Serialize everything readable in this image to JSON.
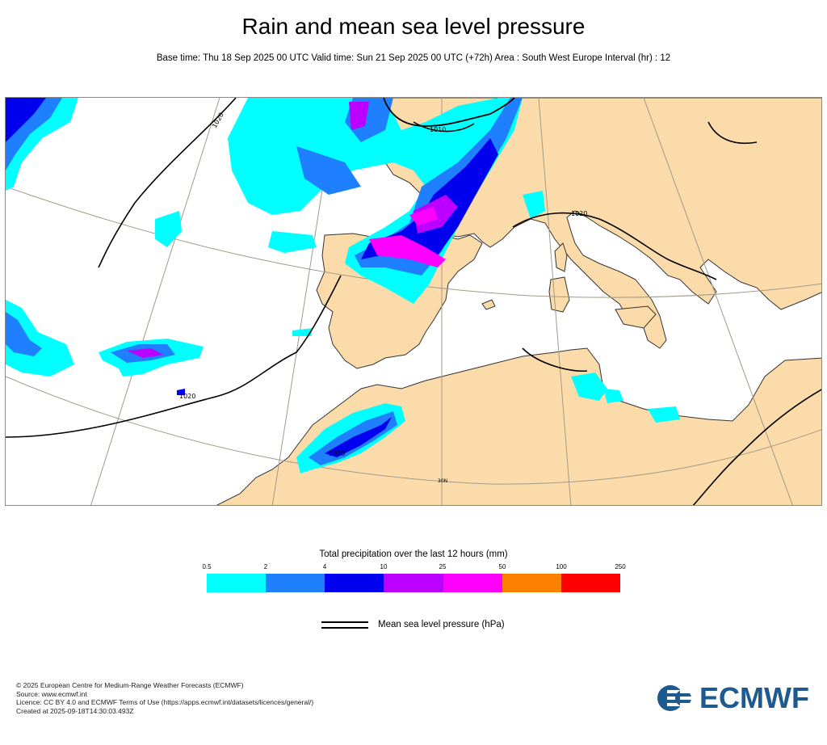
{
  "header": {
    "title": "Rain and mean sea level pressure",
    "subtitle": "Base time: Thu 18 Sep 2025 00 UTC Valid time: Sun 21 Sep 2025 00 UTC (+72h) Area : South West Europe Interval (hr) : 12"
  },
  "map": {
    "area": "South West Europe",
    "isobar_labels": [
      "1010",
      "1020",
      "1020",
      "1020",
      "1020"
    ],
    "latitude_label": "30N",
    "colors": {
      "land": "#fbdba9",
      "sea": "#ffffff",
      "coast": "#333333",
      "graticule": "#a09a8a",
      "isobar": "#000000"
    }
  },
  "legend": {
    "title": "Total precipitation over the last 12 hours (mm)",
    "ticks": [
      "0.5",
      "2",
      "4",
      "10",
      "25",
      "50",
      "100",
      "250"
    ],
    "colors": [
      "#00ffff",
      "#1e7fff",
      "#0000ee",
      "#bb00ff",
      "#ff00ff",
      "#ff8000",
      "#ff0000"
    ],
    "mslp_label": "Mean sea level pressure (hPa)"
  },
  "footer": {
    "line1": "© 2025 European Centre for Medium-Range Weather Forecasts (ECMWF)",
    "line2": "Source: www.ecmwf.int",
    "line3": "Licence: CC BY 4.0 and ECMWF Terms of Use (https://apps.ecmwf.int/datasets/licences/general/)",
    "line4": "Created at 2025-09-18T14:30:03.493Z"
  },
  "logo": {
    "text": "ECMWF",
    "color": "#1e5a8e"
  }
}
